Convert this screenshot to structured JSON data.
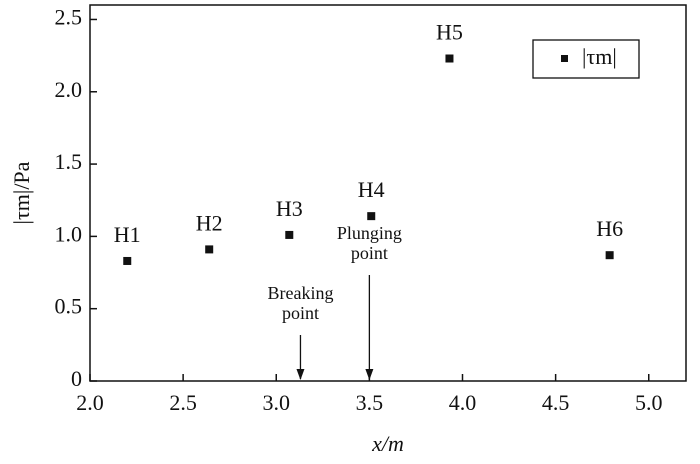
{
  "chart_data": {
    "type": "scatter",
    "x_label": "x/m",
    "y_label": "|τm|/Pa",
    "xlim": [
      2.0,
      5.2
    ],
    "ylim": [
      0,
      2.6
    ],
    "xticks": [
      {
        "value": 2,
        "label": "2.0"
      },
      2.5,
      {
        "value": 3,
        "label": "3.0"
      },
      3.5,
      {
        "value": 4,
        "label": "4.0"
      },
      4.5,
      {
        "value": 5,
        "label": "5.0"
      }
    ],
    "yticks": [
      0,
      0.5,
      {
        "value": 1,
        "label": "1.0"
      },
      1.5,
      {
        "value": 2,
        "label": "2.0"
      },
      2.5
    ],
    "series": [
      {
        "name": "|τm|",
        "color": "#111111",
        "x": [
          2.2,
          2.64,
          3.07,
          3.51,
          3.93,
          4.79
        ],
        "values": [
          0.83,
          0.91,
          1.01,
          1.14,
          2.23,
          0.87
        ],
        "labels": [
          "H1",
          "H2",
          "H3",
          "H4",
          "H5",
          "H6"
        ]
      }
    ],
    "annotations": [
      {
        "lines": [
          "Breaking",
          "point"
        ],
        "x": 3.13
      },
      {
        "lines": [
          "Plunging",
          "point"
        ],
        "x": 3.5
      }
    ],
    "legend": "top-right"
  }
}
